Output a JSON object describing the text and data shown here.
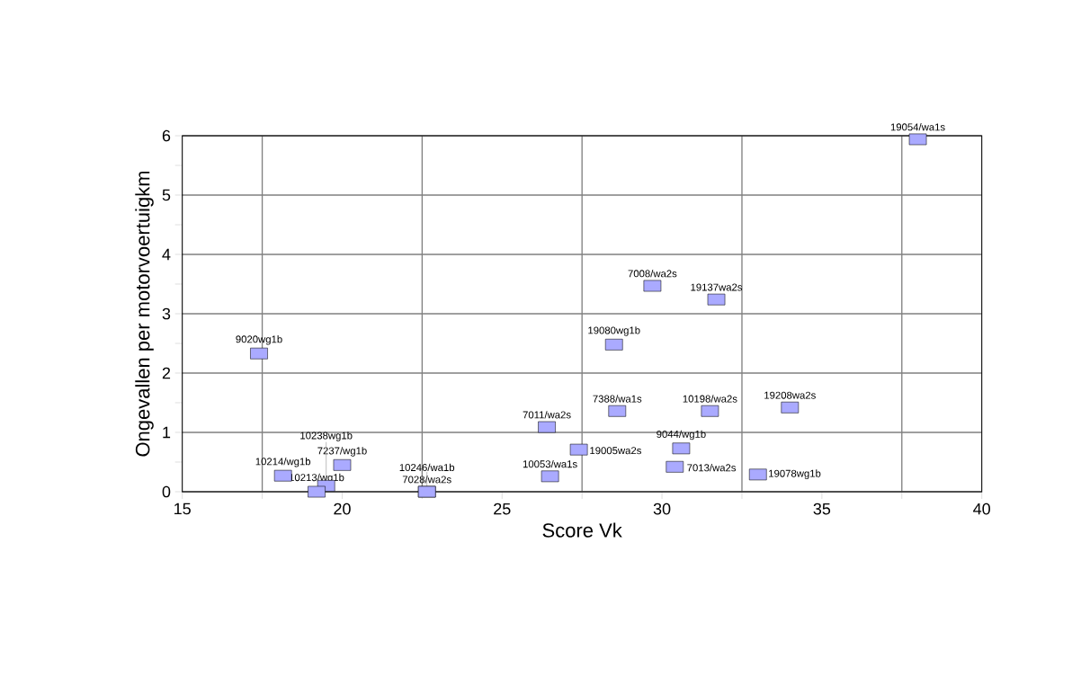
{
  "chart_data": {
    "type": "scatter",
    "xlabel": "Score Vk",
    "ylabel": "Ongevallen per motorvoertuigkm",
    "x": [
      38.0,
      29.7,
      31.7,
      28.5,
      17.4,
      26.4,
      28.6,
      31.5,
      34.0,
      27.4,
      30.6,
      30.4,
      26.5,
      33.0,
      18.15,
      20.0,
      19.5,
      19.2,
      22.65,
      22.65
    ],
    "values": [
      5.94,
      3.47,
      3.24,
      2.48,
      2.33,
      1.09,
      1.36,
      1.36,
      1.42,
      0.71,
      0.73,
      0.42,
      0.26,
      0.29,
      0.27,
      0.45,
      0.1,
      0.0,
      0.0,
      0.0
    ],
    "color": "#aaaaff",
    "marker": "square",
    "grid": true,
    "xlim": [
      15,
      40
    ],
    "ylim": [
      0,
      6
    ],
    "xticks": [
      15,
      {
        "value": 17.5,
        "label": null
      },
      20,
      {
        "value": 22.5,
        "label": null
      },
      25,
      {
        "value": 27.5,
        "label": null
      },
      30,
      {
        "value": 32.5,
        "label": null
      },
      35,
      {
        "value": 37.5,
        "label": null
      },
      40
    ],
    "yticks": [
      0,
      {
        "value": 0.5,
        "label": null
      },
      1,
      {
        "value": 1.5,
        "label": null
      },
      2,
      {
        "value": 2.5,
        "label": null
      },
      3,
      {
        "value": 3.5,
        "label": null
      },
      4,
      {
        "value": 4.5,
        "label": null
      },
      5,
      {
        "value": 5.5,
        "label": null
      },
      6
    ],
    "annotations": [
      {
        "text": "19054/wa1s",
        "x": 38.0,
        "y": 5.94
      },
      {
        "text": "7008/wa2s",
        "x": 29.7,
        "y": 3.47
      },
      {
        "text": "19137wa2s",
        "x": 31.7,
        "y": 3.24
      },
      {
        "text": "19080wg1b",
        "x": 28.5,
        "y": 2.48
      },
      {
        "text": "9020wg1b",
        "x": 17.4,
        "y": 2.33
      },
      {
        "text": "7011/wa2s",
        "x": 26.4,
        "y": 1.09
      },
      {
        "text": "7388/wa1s",
        "x": 28.6,
        "y": 1.36
      },
      {
        "text": "10198/wa2s",
        "x": 31.5,
        "y": 1.36
      },
      {
        "text": "19208wa2s",
        "x": 34.0,
        "y": 1.42
      },
      {
        "text": "19005wa2s",
        "x": 27.4,
        "y": 0.71
      },
      {
        "text": "9044/wg1b",
        "x": 30.6,
        "y": 0.73
      },
      {
        "text": "7013/wa2s",
        "x": 30.4,
        "y": 0.42
      },
      {
        "text": "10053/wa1s",
        "x": 26.5,
        "y": 0.26
      },
      {
        "text": "19078wg1b",
        "x": 33.0,
        "y": 0.29
      },
      {
        "text": "10214/wg1b",
        "x": 18.15,
        "y": 0.27
      },
      {
        "text": "7237/wg1b",
        "x": 20.0,
        "y": 0.45
      },
      {
        "text": "10238wg1b",
        "x": 19.5,
        "y": 0.1
      },
      {
        "text": "10213/wg1b",
        "x": 19.2,
        "y": 0.0
      },
      {
        "text": "7028/wa2s",
        "x": 22.65,
        "y": 0.0
      },
      {
        "text": "10246/wa1b",
        "x": 22.65,
        "y": 0.0
      }
    ]
  }
}
